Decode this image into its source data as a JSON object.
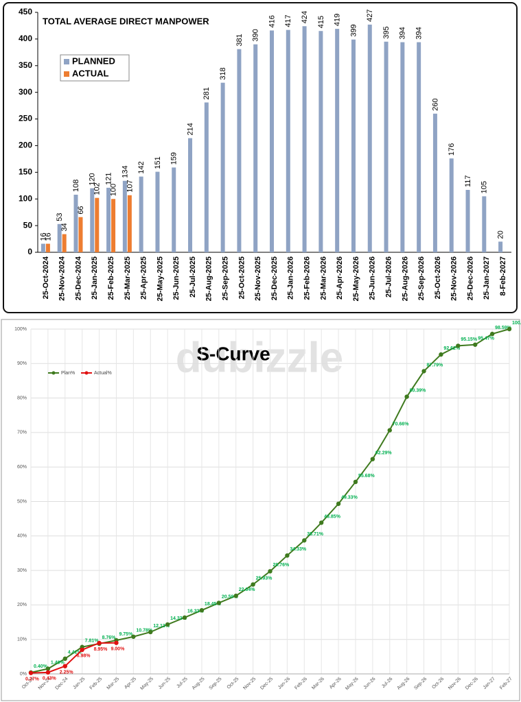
{
  "chart_data": [
    {
      "type": "bar",
      "title": "TOTAL AVERAGE DIRECT MANPOWER",
      "categories": [
        "25-Oct-2024",
        "25-Nov-2024",
        "25-Dec-2024",
        "25-Jan-2025",
        "25-Feb-2025",
        "25-Mar-2025",
        "25-Apr-2025",
        "25-May-2025",
        "25-Jun-2025",
        "25-Jul-2025",
        "25-Aug-2025",
        "25-Sep-2025",
        "25-Oct-2025",
        "25-Nov-2025",
        "25-Dec-2025",
        "25-Jan-2026",
        "25-Feb-2026",
        "25-Mar-2026",
        "25-Apr-2026",
        "25-May-2026",
        "25-Jun-2026",
        "25-Jul-2026",
        "25-Aug-2026",
        "25-Sep-2026",
        "25-Oct-2026",
        "25-Nov-2026",
        "25-Dec-2026",
        "25-Jan-2027",
        "8-Feb-2027"
      ],
      "series": [
        {
          "name": "PLANNED",
          "color": "#8fa3c4",
          "values": [
            16,
            53,
            108,
            120,
            121,
            134,
            142,
            151,
            159,
            214,
            281,
            318,
            381,
            390,
            416,
            417,
            424,
            415,
            419,
            399,
            427,
            395,
            394,
            394,
            260,
            176,
            117,
            105,
            20
          ]
        },
        {
          "name": "ACTUAL",
          "color": "#ed7d31",
          "values": [
            16,
            34,
            66,
            102,
            100,
            107,
            null,
            null,
            null,
            null,
            null,
            null,
            null,
            null,
            null,
            null,
            null,
            null,
            null,
            null,
            null,
            null,
            null,
            null,
            null,
            null,
            null,
            null,
            null
          ]
        }
      ],
      "ylim": [
        0,
        450
      ],
      "yticks": [
        0,
        50,
        100,
        150,
        200,
        250,
        300,
        350,
        400,
        450
      ],
      "grid": false,
      "legend": "upper left"
    },
    {
      "type": "line",
      "title": "S-Curve",
      "watermark": "dubizzle",
      "categories": [
        "Oct-24",
        "Nov-24",
        "Dec-24",
        "Jan-25",
        "Feb-25",
        "Mar-25",
        "Apr-25",
        "May-25",
        "Jun-25",
        "Jul-25",
        "Aug-25",
        "Sep-25",
        "Oct-25",
        "Nov-25",
        "Dec-25",
        "Jan-26",
        "Feb-26",
        "Mar-26",
        "Apr-26",
        "May-26",
        "Jun-26",
        "Jul-26",
        "Aug-26",
        "Sep-26",
        "Oct-26",
        "Nov-26",
        "Dec-26",
        "Jan-27",
        "Feb-27"
      ],
      "series": [
        {
          "name": "Plan%",
          "color": "#3f7a1e",
          "label_color": "#00b050",
          "values": [
            0.4,
            1.49,
            4.41,
            7.81,
            8.76,
            9.75,
            10.78,
            12.13,
            14.33,
            16.33,
            18.45,
            20.59,
            22.64,
            25.93,
            29.76,
            34.33,
            38.71,
            43.85,
            49.33,
            55.68,
            62.29,
            70.66,
            80.39,
            87.79,
            92.62,
            95.15,
            95.47,
            98.59,
            100.0
          ],
          "value_labels": [
            "0.40%",
            "1.49%",
            "4.41%",
            "7.81%",
            "8.76%",
            "9.75%",
            "10.78%",
            "12.13%",
            "14.33%",
            "16.33%",
            "18.45%",
            "20.59%",
            "22.64%",
            "25.93%",
            "29.76%",
            "34.33%",
            "38.71%",
            "43.85%",
            "49.33%",
            "55.68%",
            "62.29%",
            "70.66%",
            "80.39%",
            "87.79%",
            "92.62%",
            "95.15%",
            "95.47%",
            "98.59%",
            "100.00%"
          ]
        },
        {
          "name": "Actual%",
          "color": "#e01010",
          "label_color": "#e01010",
          "values": [
            0.27,
            0.43,
            2.25,
            6.98,
            8.95,
            9.0,
            null,
            null,
            null,
            null,
            null,
            null,
            null,
            null,
            null,
            null,
            null,
            null,
            null,
            null,
            null,
            null,
            null,
            null,
            null,
            null,
            null,
            null,
            null
          ],
          "value_labels": [
            "0.27%",
            "0.43%",
            "2.25%",
            "6.98%",
            "8.95%",
            "9.00%",
            null,
            null,
            null,
            null,
            null,
            null,
            null,
            null,
            null,
            null,
            null,
            null,
            null,
            null,
            null,
            null,
            null,
            null,
            null,
            null,
            null,
            null,
            null
          ]
        }
      ],
      "ylim": [
        0,
        100
      ],
      "yticks": [
        {
          "value": 0,
          "label": "0%"
        },
        {
          "value": 10,
          "label": "10%"
        },
        {
          "value": 20,
          "label": "20%"
        },
        {
          "value": 30,
          "label": "30%"
        },
        {
          "value": 40,
          "label": "40%"
        },
        {
          "value": 50,
          "label": "50%"
        },
        {
          "value": 60,
          "label": "60%"
        },
        {
          "value": 70,
          "label": "70%"
        },
        {
          "value": 80,
          "label": "80%"
        },
        {
          "value": 90,
          "label": "90%"
        },
        {
          "value": 100,
          "label": "100%"
        }
      ],
      "grid": true,
      "legend": "upper left"
    }
  ]
}
